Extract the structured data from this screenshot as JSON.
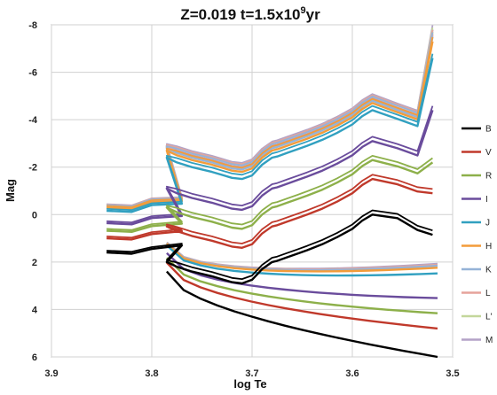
{
  "chart_data": {
    "type": "line",
    "title_main": "Z=0.019   t=1.5x10",
    "title_exp": "9",
    "title_suffix": "yr",
    "xlabel": "log Te",
    "ylabel": "Mag",
    "xlim": [
      3.9,
      3.5
    ],
    "ylim": [
      6,
      -8
    ],
    "x_ticks": [
      "3.9",
      "3.8",
      "3.7",
      "3.6",
      "3.5"
    ],
    "y_ticks": [
      "-8",
      "-6",
      "-4",
      "-2",
      "0",
      "2",
      "4",
      "6"
    ],
    "x_reversed": true,
    "y_reversed": true,
    "grid": true,
    "legend_position": "right",
    "base_track": {
      "x": [
        3.785,
        3.775,
        3.76,
        3.74,
        3.72,
        3.71,
        3.7,
        3.69,
        3.685,
        3.68,
        3.675,
        3.665,
        3.655,
        3.645,
        3.63,
        3.615,
        3.6,
        3.59,
        3.58
      ],
      "y": [
        2.0,
        2.2,
        2.4,
        2.6,
        2.85,
        2.9,
        2.75,
        2.3,
        2.15,
        2.0,
        1.95,
        1.8,
        1.65,
        1.5,
        1.25,
        0.95,
        0.6,
        0.25,
        0.0
      ]
    },
    "series": [
      {
        "name": "B",
        "color": "#000000",
        "offset": 0,
        "tip": 0.85
      },
      {
        "name": "V",
        "color": "#c0392b",
        "offset": -1.5,
        "tip": -0.9
      },
      {
        "name": "R",
        "color": "#8db04a",
        "offset": -2.3,
        "tip": -2.2
      },
      {
        "name": "I",
        "color": "#6a4c9c",
        "offset": -3.1,
        "tip": -4.4
      },
      {
        "name": "J",
        "color": "#31a0c0",
        "offset": -4.4,
        "tip": -6.6
      },
      {
        "name": "H",
        "color": "#f39c3a",
        "offset": -4.7,
        "tip": -7.3
      },
      {
        "name": "K",
        "color": "#95b3d7",
        "offset": -4.8,
        "tip": -7.5
      },
      {
        "name": "L",
        "color": "#e6a39b",
        "offset": -4.85,
        "tip": -7.6
      },
      {
        "name": "L'",
        "color": "#c4d79b",
        "offset": -4.85,
        "tip": -7.7
      },
      {
        "name": "M",
        "color": "#b3a2c7",
        "offset": -4.9,
        "tip": -7.8
      }
    ]
  }
}
